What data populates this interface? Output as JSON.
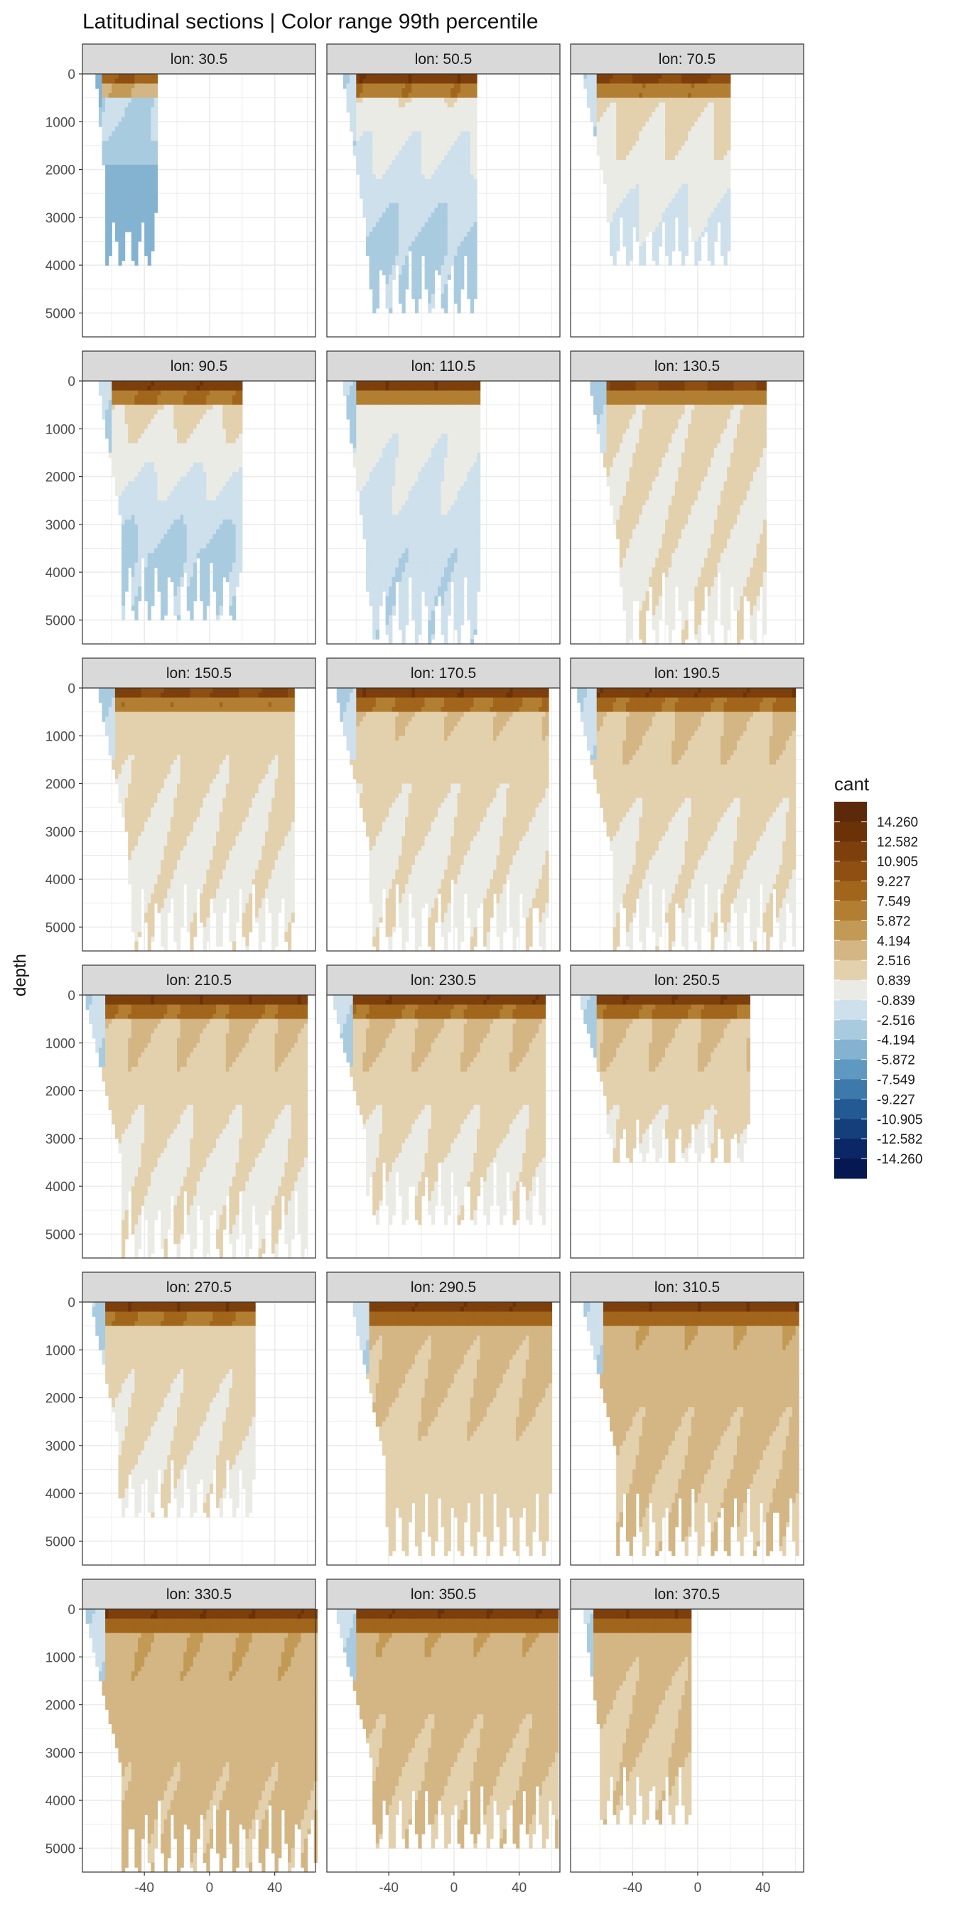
{
  "chart_data": {
    "type": "heatmap",
    "title": "Latitudinal sections | Color range 99th percentile",
    "xlabel": "",
    "ylabel": "depth",
    "x_ticks": [
      -40,
      0,
      40
    ],
    "y_ticks": [
      0,
      1000,
      2000,
      3000,
      4000,
      5000
    ],
    "xlim": [
      -78,
      65
    ],
    "ylim": [
      5500,
      0
    ],
    "facet_prefix": "lon: ",
    "facets": [
      {
        "lon": "30.5",
        "lat_range": [
          -70,
          -32
        ],
        "max_depth": 3950,
        "surface": 9,
        "mid": -2,
        "deep": -5,
        "mode": "cold"
      },
      {
        "lon": "50.5",
        "lat_range": [
          -68,
          14
        ],
        "max_depth": 5000,
        "surface": 12,
        "mid": 1,
        "deep": -3,
        "mode": "mixed"
      },
      {
        "lon": "70.5",
        "lat_range": [
          -70,
          20
        ],
        "max_depth": 4000,
        "surface": 11,
        "mid": 2,
        "deep": -1.5,
        "mode": "mixed"
      },
      {
        "lon": "90.5",
        "lat_range": [
          -68,
          20
        ],
        "max_depth": 5000,
        "surface": 12,
        "mid": 2,
        "deep": -3,
        "mode": "mixed"
      },
      {
        "lon": "110.5",
        "lat_range": [
          -68,
          15
        ],
        "max_depth": 5500,
        "surface": 12,
        "mid": 0.5,
        "deep": -2,
        "mode": "mixed"
      },
      {
        "lon": "130.5",
        "lat_range": [
          -66,
          42
        ],
        "max_depth": 5500,
        "surface": 11,
        "mid": 1.5,
        "deep": 0.5,
        "mode": "warm"
      },
      {
        "lon": "150.5",
        "lat_range": [
          -68,
          52
        ],
        "max_depth": 5500,
        "surface": 11,
        "mid": 2,
        "deep": 0.5,
        "mode": "warm"
      },
      {
        "lon": "170.5",
        "lat_range": [
          -72,
          58
        ],
        "max_depth": 5500,
        "surface": 12,
        "mid": 2.5,
        "deep": 0.5,
        "mode": "warm"
      },
      {
        "lon": "190.5",
        "lat_range": [
          -74,
          60
        ],
        "max_depth": 5500,
        "surface": 12,
        "mid": 3,
        "deep": 0.5,
        "mode": "warm"
      },
      {
        "lon": "210.5",
        "lat_range": [
          -76,
          60
        ],
        "max_depth": 5500,
        "surface": 12,
        "mid": 3,
        "deep": 0.5,
        "mode": "warm"
      },
      {
        "lon": "230.5",
        "lat_range": [
          -74,
          55
        ],
        "max_depth": 4800,
        "surface": 12,
        "mid": 3,
        "deep": 0.5,
        "mode": "warm"
      },
      {
        "lon": "250.5",
        "lat_range": [
          -72,
          32
        ],
        "max_depth": 3500,
        "surface": 12,
        "mid": 3,
        "deep": 0.5,
        "mode": "warm"
      },
      {
        "lon": "270.5",
        "lat_range": [
          -72,
          28
        ],
        "max_depth": 4500,
        "surface": 12,
        "mid": 2,
        "deep": 0.5,
        "mode": "warm"
      },
      {
        "lon": "290.5",
        "lat_range": [
          -62,
          60
        ],
        "max_depth": 5300,
        "surface": 12,
        "mid": 3.5,
        "deep": 1.5,
        "mode": "warm"
      },
      {
        "lon": "310.5",
        "lat_range": [
          -70,
          62
        ],
        "max_depth": 5300,
        "surface": 12,
        "mid": 4,
        "deep": 2.5,
        "mode": "warm"
      },
      {
        "lon": "330.5",
        "lat_range": [
          -76,
          65
        ],
        "max_depth": 5500,
        "surface": 12,
        "mid": 4,
        "deep": 3,
        "mode": "warm"
      },
      {
        "lon": "350.5",
        "lat_range": [
          -72,
          63
        ],
        "max_depth": 5000,
        "surface": 12,
        "mid": 4,
        "deep": 2.5,
        "mode": "warm"
      },
      {
        "lon": "370.5",
        "lat_range": [
          -70,
          -5
        ],
        "max_depth": 4500,
        "surface": 12,
        "mid": 3.5,
        "deep": 2,
        "mode": "warm"
      }
    ],
    "legend": {
      "title": "cant",
      "position": "right",
      "labels": [
        "14.260",
        "12.582",
        "10.905",
        "9.227",
        "7.549",
        "5.872",
        "4.194",
        "2.516",
        "0.839",
        "-0.839",
        "-2.516",
        "-4.194",
        "-5.872",
        "-7.549",
        "-9.227",
        "-10.905",
        "-12.582",
        "-14.260"
      ],
      "colors": [
        "#5c2a0a",
        "#6b3208",
        "#7d3f0c",
        "#8f4f12",
        "#a1651c",
        "#b27f32",
        "#c29a55",
        "#d3b684",
        "#e3d0ad",
        "#ebebe5",
        "#cde0ec",
        "#a9cbdf",
        "#84b3d1",
        "#5f98c0",
        "#3d79ab",
        "#235a93",
        "#143f7b",
        "#0b2766",
        "#061852"
      ]
    }
  }
}
